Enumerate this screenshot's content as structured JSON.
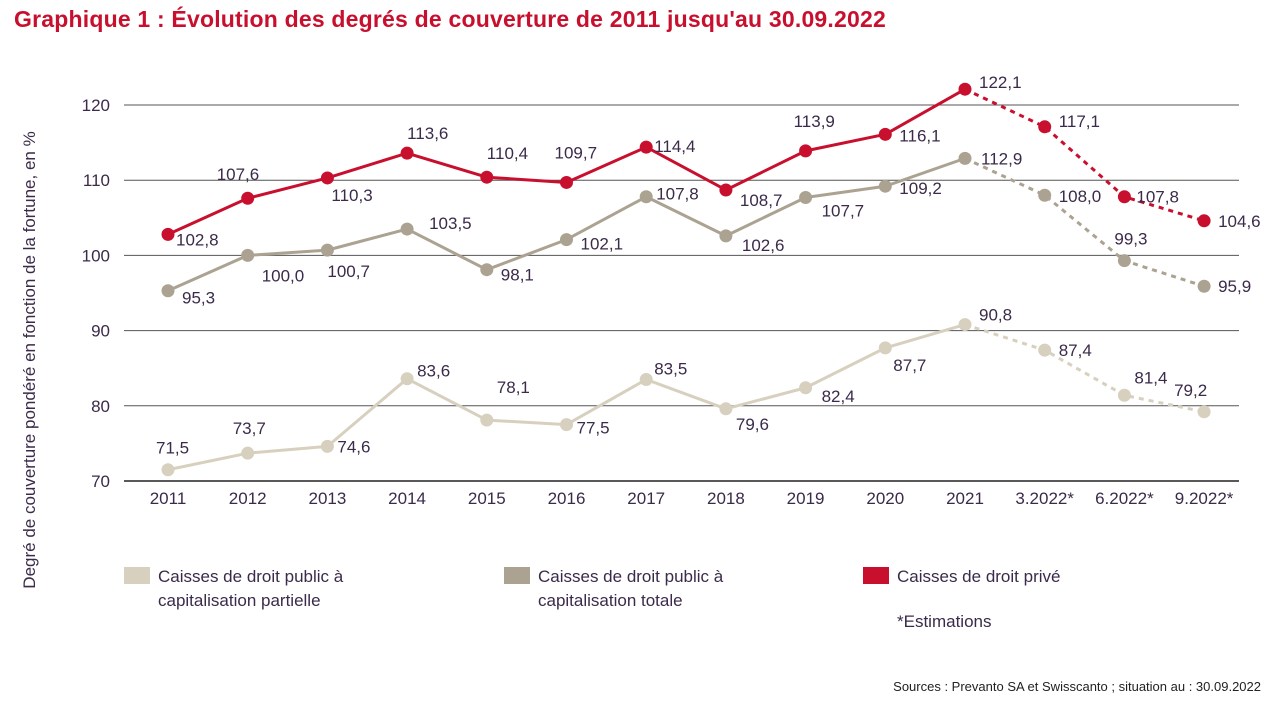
{
  "title": "Graphique 1 : Évolution des degrés de couverture de 2011 jusqu'au 30.09.2022",
  "note": "*Estimations",
  "source": "Sources : Prevanto SA et Swisscanto ; situation au : 30.09.2022",
  "chart_data": {
    "type": "line",
    "title": "Graphique 1 : Évolution des degrés de couverture de 2011 jusqu'au 30.09.2022",
    "xlabel": "",
    "ylabel": "Degré de couverture pondéré en fonction de la fortune, en %",
    "ylim": [
      70,
      125
    ],
    "yticks": [
      70,
      80,
      90,
      100,
      110,
      120
    ],
    "grid": true,
    "legend_position": "bottom",
    "categories": [
      "2011",
      "2012",
      "2013",
      "2014",
      "2015",
      "2016",
      "2017",
      "2018",
      "2019",
      "2020",
      "2021",
      "3.2022*",
      "6.2022*",
      "9.2022*"
    ],
    "estimated_from_index": 10,
    "series": [
      {
        "name": "Caisses de droit public à\ncapitalisation partielle",
        "color": "#d8d0bf",
        "values": [
          71.5,
          73.7,
          74.6,
          83.6,
          78.1,
          77.5,
          83.5,
          79.6,
          82.4,
          87.7,
          90.8,
          87.4,
          81.4,
          79.2
        ],
        "labels": [
          "71,5",
          "73,7",
          "74,6",
          "83,6",
          "78,1",
          "77,5",
          "83,5",
          "79,6",
          "82,4",
          "87,7",
          "90,8",
          "87,4",
          "81,4",
          "79,2"
        ]
      },
      {
        "name": "Caisses de droit public à\ncapitalisation totale",
        "color": "#aca291",
        "values": [
          95.3,
          100.0,
          100.7,
          103.5,
          98.1,
          102.1,
          107.8,
          102.6,
          107.7,
          109.2,
          112.9,
          108.0,
          99.3,
          95.9
        ],
        "labels": [
          "95,3",
          "100,0",
          "100,7",
          "103,5",
          "98,1",
          "102,1",
          "107,8",
          "102,6",
          "107,7",
          "109,2",
          "112,9",
          "108,0",
          "99,3",
          "95,9"
        ]
      },
      {
        "name": "Caisses de droit privé",
        "color": "#c8102e",
        "values": [
          102.8,
          107.6,
          110.3,
          113.6,
          110.4,
          109.7,
          114.4,
          108.7,
          113.9,
          116.1,
          122.1,
          117.1,
          107.8,
          104.6
        ],
        "labels": [
          "102,8",
          "107,6",
          "110,3",
          "113,6",
          "110,4",
          "109,7",
          "114,4",
          "108,7",
          "113,9",
          "116,1",
          "122,1",
          "117,1",
          "107,8",
          "104,6"
        ]
      }
    ]
  }
}
